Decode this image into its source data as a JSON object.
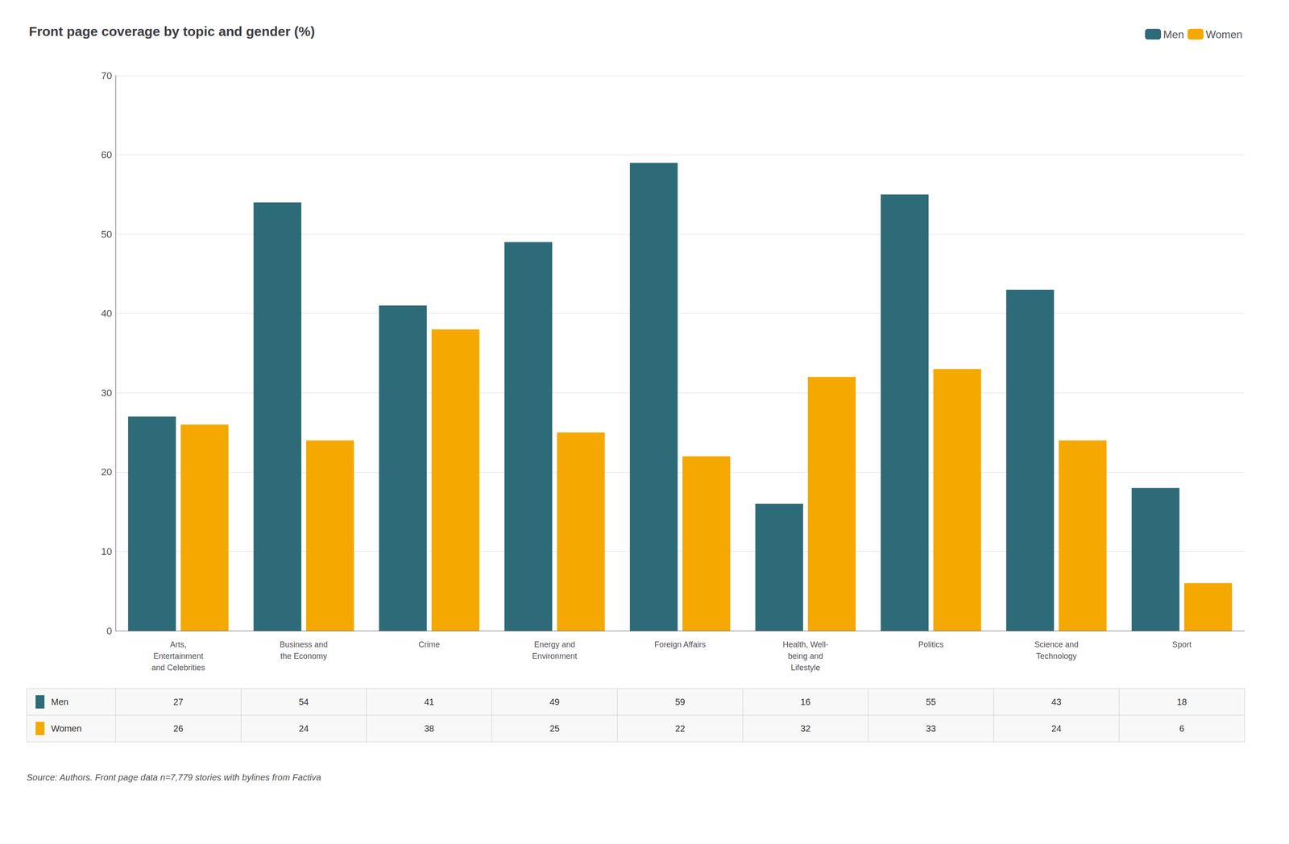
{
  "chart_data": {
    "type": "bar",
    "title": "Front page coverage by topic and gender (%)",
    "categories": [
      "Arts,\nEntertainment\nand Celebrities",
      "Business and\nthe Economy",
      "Crime",
      "Energy and\nEnvironment",
      "Foreign Affairs",
      "Health, Well-\nbeing and\nLifestyle",
      "Politics",
      "Science and\nTechnology",
      "Sport"
    ],
    "series": [
      {
        "name": "Men",
        "color": "#2e6b78",
        "values": [
          27,
          54,
          41,
          49,
          59,
          16,
          55,
          43,
          18
        ]
      },
      {
        "name": "Women",
        "color": "#f5a800",
        "values": [
          26,
          24,
          38,
          25,
          22,
          32,
          33,
          24,
          6
        ]
      }
    ],
    "ylim": [
      0,
      70
    ],
    "yticks": [
      0,
      10,
      20,
      30,
      40,
      50,
      60,
      70
    ],
    "grid": true,
    "legend": "top-right",
    "annotations": [
      "Source: Authors. Front page data n=7,779 stories with bylines from Factiva"
    ]
  }
}
